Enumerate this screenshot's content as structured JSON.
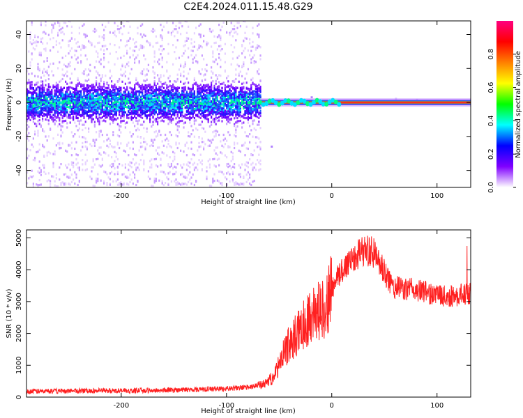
{
  "chart_data": [
    {
      "type": "heatmap",
      "title": "C2E4.2024.011.15.48.G29",
      "xlabel": "Height of straight line (km)",
      "ylabel": "Frequency (Hz)",
      "xlim": [
        -290,
        132
      ],
      "ylim": [
        -50,
        48
      ],
      "xticks": [
        -200,
        -100,
        0,
        100
      ],
      "xtick_labels": [
        "-200",
        "-100",
        "0",
        "100"
      ],
      "yticks": [
        -40,
        -20,
        0,
        20,
        40
      ],
      "ytick_labels": [
        "-40",
        "-20",
        "0",
        "20",
        "40"
      ],
      "colorbar": {
        "label": "Normalized spectral amplitude",
        "range": [
          0,
          1
        ],
        "ticks": [
          0.0,
          0.2,
          0.4,
          0.6,
          0.8
        ],
        "tick_labels": [
          "0.0",
          "0.2",
          "0.4",
          "0.6",
          "0.8"
        ],
        "colors": [
          "#ffffff",
          "#8000ff",
          "#0000ff",
          "#00ffff",
          "#00ff00",
          "#ffff00",
          "#ff8000",
          "#ff0000",
          "#ff0080"
        ]
      },
      "regions": [
        {
          "x": [
            -290,
            -68
          ],
          "pattern": "broadband noise",
          "core_band_hz": [
            -10,
            10
          ]
        },
        {
          "x": [
            -68,
            132
          ],
          "pattern": "narrow carrier line",
          "center_hz": 0
        }
      ],
      "grid": false
    },
    {
      "type": "line",
      "xlabel": "Height of straight line (km)",
      "ylabel": "SNR (10 * v/v)",
      "xlim": [
        -290,
        132
      ],
      "ylim": [
        0,
        5250
      ],
      "xticks": [
        -200,
        -100,
        0,
        100
      ],
      "xtick_labels": [
        "-200",
        "-100",
        "0",
        "100"
      ],
      "yticks": [
        0,
        1000,
        2000,
        3000,
        4000,
        5000
      ],
      "ytick_labels": [
        "0",
        "1000",
        "2000",
        "3000",
        "4000",
        "5000"
      ],
      "color": "#ff0000",
      "series": [
        {
          "x": [
            -290,
            -260,
            -230,
            -200,
            -170,
            -140,
            -110,
            -90,
            -75,
            -65,
            -60,
            -55,
            -50,
            -45,
            -40,
            -35,
            -30,
            -25,
            -20,
            -15,
            -10,
            -5,
            0,
            5,
            10,
            15,
            20,
            25,
            30,
            35,
            40,
            45,
            50,
            55,
            60,
            70,
            80,
            90,
            100,
            110,
            120,
            132
          ],
          "y": [
            180,
            190,
            200,
            200,
            210,
            230,
            260,
            280,
            330,
            400,
            500,
            650,
            1000,
            1400,
            1700,
            1900,
            2100,
            2350,
            2600,
            2700,
            2700,
            2900,
            3400,
            3700,
            4000,
            4200,
            4400,
            4500,
            4600,
            4600,
            4500,
            4200,
            3900,
            3600,
            3450,
            3400,
            3350,
            3300,
            3200,
            3150,
            3200,
            3250
          ]
        }
      ],
      "grid": false
    }
  ]
}
